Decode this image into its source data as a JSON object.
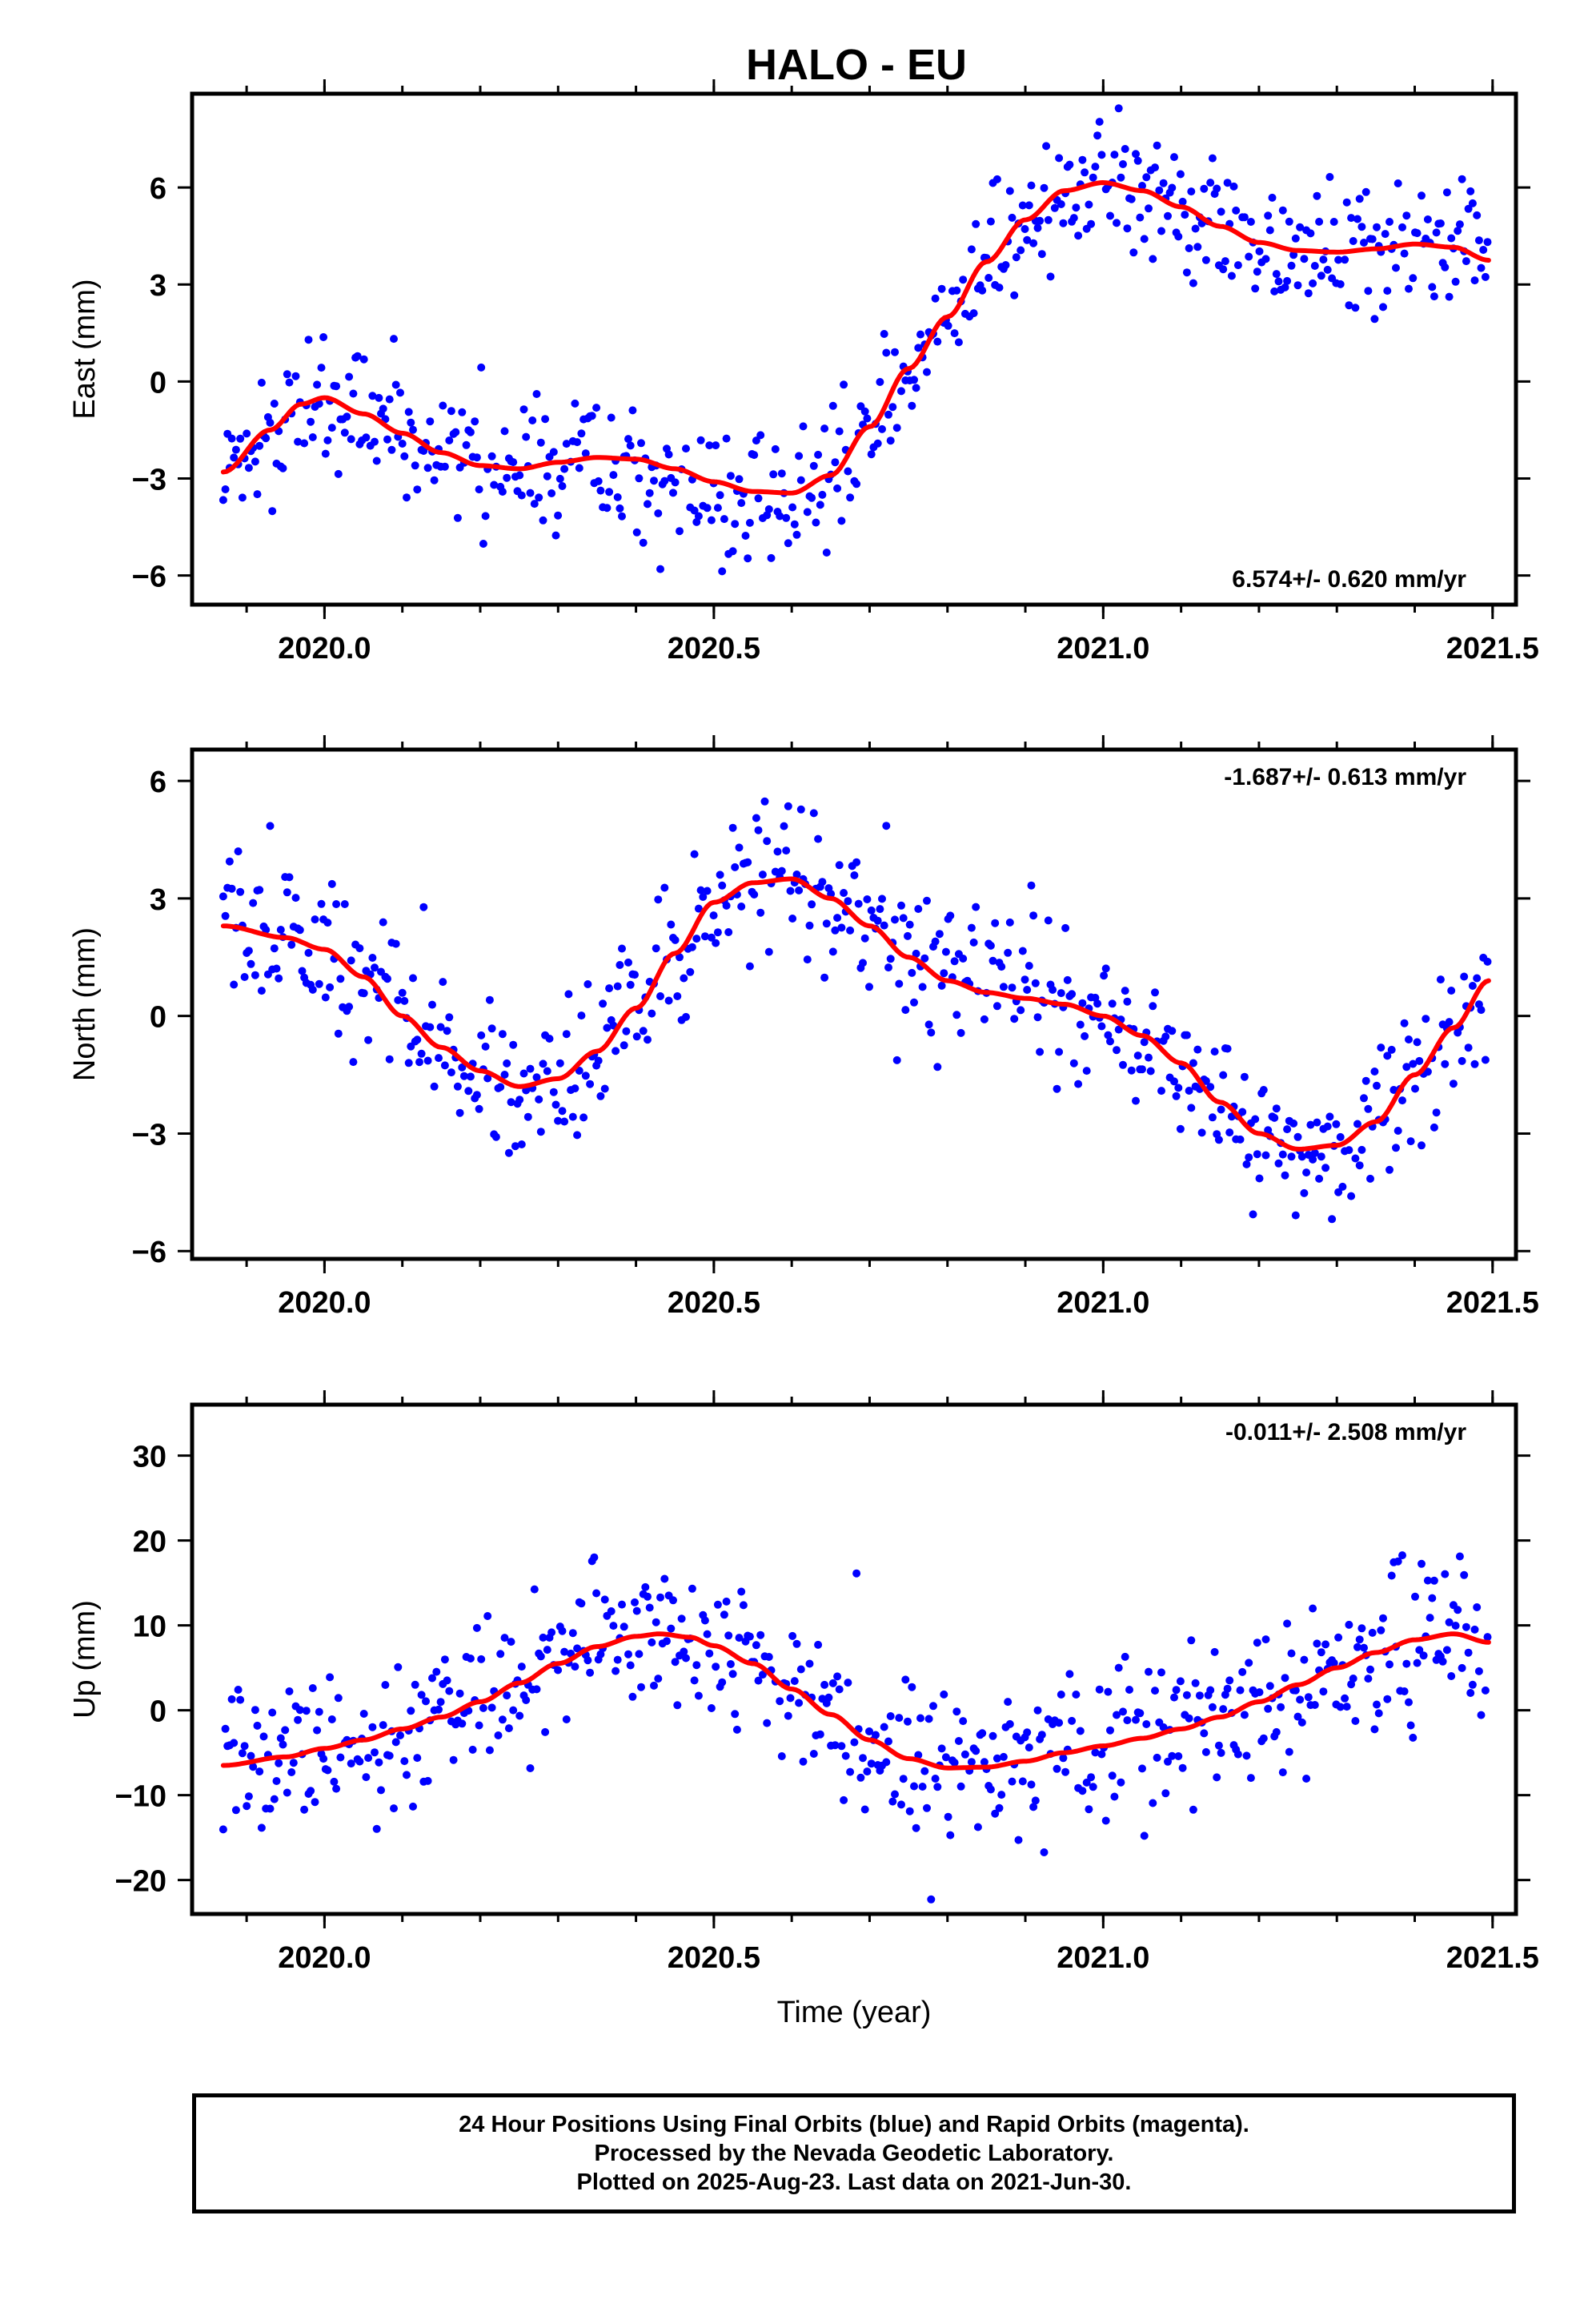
{
  "title": "HALO - EU",
  "footer": {
    "line1": "24 Hour Positions Using Final Orbits (blue) and Rapid Orbits (magenta).",
    "line2": "Processed by the Nevada Geodetic Laboratory.",
    "line3": "Plotted on 2025-Aug-23. Last data on 2021-Jun-30."
  },
  "colors": {
    "points": "#0000ff",
    "fit": "#ff0000",
    "frame": "#000000"
  },
  "chart_data": [
    {
      "type": "scatter",
      "component": "east",
      "ylabel": "East (mm)",
      "xlabel": "",
      "xlim": [
        2019.83,
        2021.53
      ],
      "ylim": [
        -6.9,
        8.9
      ],
      "xticks": [
        2020.0,
        2020.5,
        2021.0,
        2021.5
      ],
      "xtick_labels": [
        "2020.0",
        "2020.5",
        "2021.0",
        "2021.5"
      ],
      "yticks": [
        -6,
        -3,
        0,
        3,
        6
      ],
      "ytick_labels": [
        "−6",
        "−3",
        "0",
        "3",
        "6"
      ],
      "rate_label": "6.574+/- 0.620 mm/yr",
      "rate_position": "bottom-right",
      "x_start": 2019.87,
      "x_end": 2021.495,
      "scatter_sd": 1.1,
      "trend_knots": [
        [
          2019.87,
          -2.8
        ],
        [
          2019.93,
          -1.5
        ],
        [
          2019.97,
          -0.7
        ],
        [
          2020.0,
          -0.5
        ],
        [
          2020.05,
          -1.0
        ],
        [
          2020.1,
          -1.6
        ],
        [
          2020.15,
          -2.2
        ],
        [
          2020.2,
          -2.6
        ],
        [
          2020.25,
          -2.7
        ],
        [
          2020.3,
          -2.5
        ],
        [
          2020.35,
          -2.35
        ],
        [
          2020.4,
          -2.4
        ],
        [
          2020.45,
          -2.7
        ],
        [
          2020.5,
          -3.1
        ],
        [
          2020.55,
          -3.4
        ],
        [
          2020.6,
          -3.45
        ],
        [
          2020.65,
          -2.9
        ],
        [
          2020.7,
          -1.4
        ],
        [
          2020.75,
          0.4
        ],
        [
          2020.8,
          2.0
        ],
        [
          2020.85,
          3.7
        ],
        [
          2020.9,
          5.0
        ],
        [
          2020.95,
          5.9
        ],
        [
          2021.0,
          6.15
        ],
        [
          2021.05,
          5.9
        ],
        [
          2021.1,
          5.4
        ],
        [
          2021.15,
          4.8
        ],
        [
          2021.2,
          4.3
        ],
        [
          2021.25,
          4.05
        ],
        [
          2021.3,
          4.0
        ],
        [
          2021.35,
          4.1
        ],
        [
          2021.4,
          4.25
        ],
        [
          2021.45,
          4.15
        ],
        [
          2021.495,
          3.75
        ]
      ]
    },
    {
      "type": "scatter",
      "component": "north",
      "ylabel": "North (mm)",
      "xlabel": "",
      "xlim": [
        2019.83,
        2021.53
      ],
      "ylim": [
        -6.2,
        6.8
      ],
      "xticks": [
        2020.0,
        2020.5,
        2021.0,
        2021.5
      ],
      "xtick_labels": [
        "2020.0",
        "2020.5",
        "2021.0",
        "2021.5"
      ],
      "yticks": [
        -6,
        -3,
        0,
        3,
        6
      ],
      "ytick_labels": [
        "−6",
        "−3",
        "0",
        "3",
        "6"
      ],
      "rate_label": "-1.687+/- 0.613 mm/yr",
      "rate_position": "top-right",
      "x_start": 2019.87,
      "x_end": 2021.495,
      "scatter_sd": 1.0,
      "trend_knots": [
        [
          2019.87,
          2.3
        ],
        [
          2019.95,
          2.0
        ],
        [
          2020.0,
          1.7
        ],
        [
          2020.05,
          1.0
        ],
        [
          2020.1,
          0.0
        ],
        [
          2020.15,
          -0.8
        ],
        [
          2020.2,
          -1.4
        ],
        [
          2020.25,
          -1.8
        ],
        [
          2020.3,
          -1.6
        ],
        [
          2020.35,
          -0.9
        ],
        [
          2020.4,
          0.2
        ],
        [
          2020.45,
          1.6
        ],
        [
          2020.5,
          2.9
        ],
        [
          2020.55,
          3.4
        ],
        [
          2020.6,
          3.5
        ],
        [
          2020.65,
          3.0
        ],
        [
          2020.7,
          2.3
        ],
        [
          2020.75,
          1.5
        ],
        [
          2020.8,
          0.9
        ],
        [
          2020.85,
          0.6
        ],
        [
          2020.9,
          0.45
        ],
        [
          2020.95,
          0.3
        ],
        [
          2021.0,
          0.0
        ],
        [
          2021.05,
          -0.5
        ],
        [
          2021.1,
          -1.2
        ],
        [
          2021.15,
          -2.2
        ],
        [
          2021.2,
          -3.0
        ],
        [
          2021.25,
          -3.4
        ],
        [
          2021.3,
          -3.3
        ],
        [
          2021.35,
          -2.7
        ],
        [
          2021.4,
          -1.5
        ],
        [
          2021.45,
          -0.3
        ],
        [
          2021.495,
          0.9
        ]
      ]
    },
    {
      "type": "scatter",
      "component": "up",
      "ylabel": "Up (mm)",
      "xlabel": "Time (year)",
      "xlim": [
        2019.83,
        2021.53
      ],
      "ylim": [
        -24.0,
        36.0
      ],
      "xticks": [
        2020.0,
        2020.5,
        2021.0,
        2021.5
      ],
      "xtick_labels": [
        "2020.0",
        "2020.5",
        "2021.0",
        "2021.5"
      ],
      "yticks": [
        -20,
        -10,
        0,
        10,
        20,
        30
      ],
      "ytick_labels": [
        "−20",
        "−10",
        "0",
        "10",
        "20",
        "30"
      ],
      "rate_label": "-0.011+/- 2.508 mm/yr",
      "rate_position": "top-right",
      "x_start": 2019.87,
      "x_end": 2021.495,
      "scatter_sd": 4.5,
      "trend_knots": [
        [
          2019.87,
          -6.5
        ],
        [
          2019.95,
          -5.5
        ],
        [
          2020.0,
          -4.5
        ],
        [
          2020.05,
          -3.5
        ],
        [
          2020.1,
          -2.2
        ],
        [
          2020.15,
          -0.8
        ],
        [
          2020.2,
          1.0
        ],
        [
          2020.25,
          3.2
        ],
        [
          2020.3,
          5.5
        ],
        [
          2020.35,
          7.5
        ],
        [
          2020.4,
          8.7
        ],
        [
          2020.43,
          9.0
        ],
        [
          2020.47,
          8.6
        ],
        [
          2020.5,
          7.6
        ],
        [
          2020.55,
          5.5
        ],
        [
          2020.6,
          2.5
        ],
        [
          2020.65,
          -0.5
        ],
        [
          2020.7,
          -3.5
        ],
        [
          2020.75,
          -5.7
        ],
        [
          2020.8,
          -6.8
        ],
        [
          2020.85,
          -6.7
        ],
        [
          2020.9,
          -6.0
        ],
        [
          2020.95,
          -5.0
        ],
        [
          2021.0,
          -4.2
        ],
        [
          2021.05,
          -3.3
        ],
        [
          2021.1,
          -2.2
        ],
        [
          2021.15,
          -0.8
        ],
        [
          2021.2,
          1.0
        ],
        [
          2021.25,
          3.0
        ],
        [
          2021.3,
          5.0
        ],
        [
          2021.35,
          6.8
        ],
        [
          2021.4,
          8.3
        ],
        [
          2021.45,
          9.0
        ],
        [
          2021.495,
          8.0
        ]
      ]
    }
  ]
}
